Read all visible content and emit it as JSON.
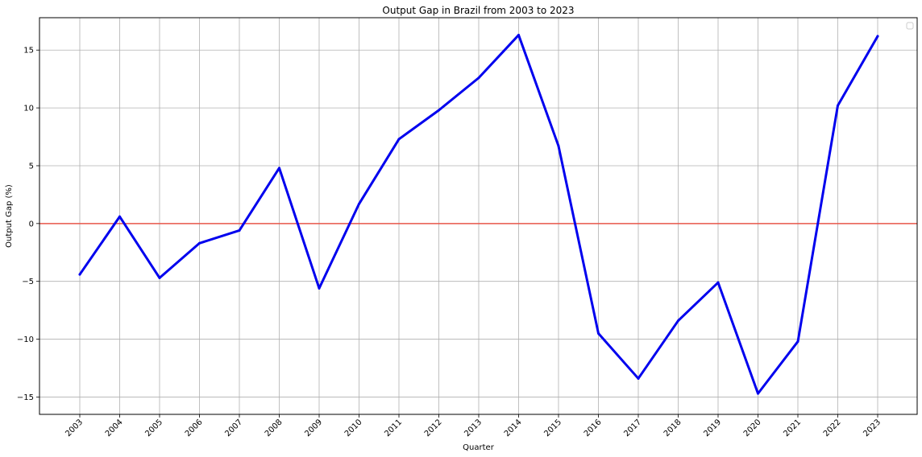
{
  "chart_data": {
    "type": "line",
    "title": "Output Gap in Brazil from 2003 to 2023",
    "xlabel": "Quarter",
    "ylabel": "Output Gap (%)",
    "categories": [
      "2003",
      "2004",
      "2005",
      "2006",
      "2007",
      "2008",
      "2009",
      "2010",
      "2011",
      "2012",
      "2013",
      "2014",
      "2015",
      "2016",
      "2017",
      "2018",
      "2019",
      "2020",
      "2021",
      "2022",
      "2023"
    ],
    "series": [
      {
        "values": [
          -4.4,
          0.6,
          -4.7,
          -1.7,
          -0.6,
          4.8,
          -5.6,
          1.7,
          7.3,
          9.8,
          12.6,
          16.3,
          6.7,
          -9.5,
          -13.4,
          -8.4,
          -5.1,
          -14.7,
          -10.2,
          10.2,
          16.2
        ],
        "color": "#0000ee"
      }
    ],
    "reference_line": {
      "y": 0,
      "color": "#e8564a"
    },
    "ylim": [
      -16.5,
      17.8
    ],
    "yticks": [
      -15,
      -10,
      -5,
      0,
      5,
      10,
      15
    ],
    "ytick_labels": [
      "−15",
      "−10",
      "−5",
      "0",
      "5",
      "10",
      "15"
    ],
    "grid": true,
    "legend": "top-right"
  }
}
